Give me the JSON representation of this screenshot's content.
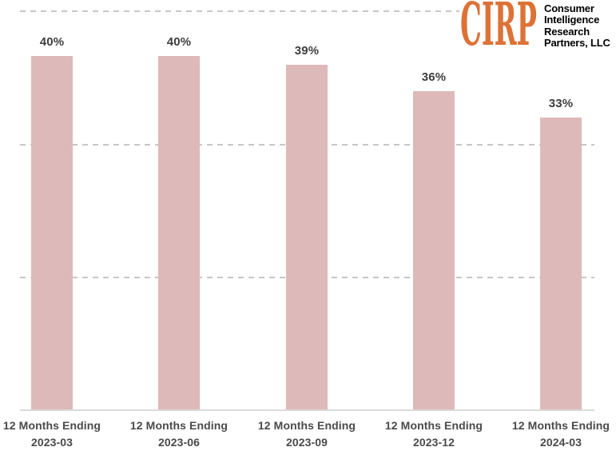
{
  "page": {
    "background": "#ffffff"
  },
  "logo": {
    "brand": "CIRP",
    "brand_color": "#dd7236",
    "text_color": "#121212",
    "lines": [
      "Consumer",
      "Intelligence",
      "Research",
      "Partners, LLC"
    ]
  },
  "chart_data": {
    "type": "bar",
    "title": "",
    "xlabel": "",
    "ylabel": "",
    "category_prefix": "12 Months Ending",
    "categories": [
      "2023-03",
      "2023-06",
      "2023-09",
      "2023-12",
      "2024-03"
    ],
    "values": [
      40,
      40,
      39,
      36,
      33
    ],
    "value_labels": [
      "40%",
      "40%",
      "39%",
      "36%",
      "33%"
    ],
    "ylim": [
      0,
      45
    ],
    "gridline_values": [
      15,
      30,
      45
    ],
    "grid_style": "horizontal dashed, no y-axis tick labels",
    "legend": "none",
    "bar_color": "#deb9b9",
    "value_label_color": "#3d3d3d",
    "axis_label_color": "#4a4a4a",
    "gridline_color": "#c6c6c6",
    "axis_line_color": "#dadada"
  }
}
